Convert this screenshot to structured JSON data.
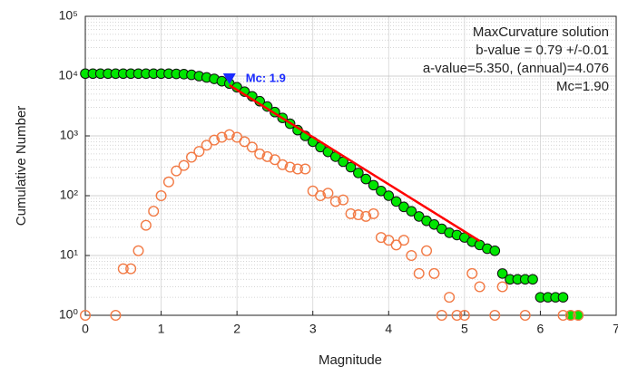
{
  "chart_data": {
    "type": "scatter",
    "x_label": "Magnitude",
    "y_label": "Cumulative Number",
    "xlim": [
      0,
      7
    ],
    "ylim": [
      1,
      100000
    ],
    "xticks": [
      0,
      1,
      2,
      3,
      4,
      5,
      6,
      7
    ],
    "yticks": [
      {
        "value": 1,
        "label": "10⁰"
      },
      {
        "value": 10,
        "label": "10¹"
      },
      {
        "value": 100,
        "label": "10²"
      },
      {
        "value": 1000,
        "label": "10³"
      },
      {
        "value": 10000,
        "label": "10⁴"
      },
      {
        "value": 100000,
        "label": "10⁵"
      }
    ],
    "log_y": true,
    "grid": true,
    "minor_grid": true,
    "series": [
      {
        "mode": "markers",
        "color": "#00e600",
        "filled": true,
        "x": [
          0,
          0.1,
          0.2,
          0.3,
          0.4,
          0.5,
          0.6,
          0.7,
          0.8,
          0.9,
          1.0,
          1.1,
          1.2,
          1.3,
          1.4,
          1.5,
          1.6,
          1.7,
          1.8,
          1.9,
          2.0,
          2.1,
          2.2,
          2.3,
          2.4,
          2.5,
          2.6,
          2.7,
          2.8,
          2.9,
          3.0,
          3.1,
          3.2,
          3.3,
          3.4,
          3.5,
          3.6,
          3.7,
          3.8,
          3.9,
          4.0,
          4.1,
          4.2,
          4.3,
          4.4,
          4.5,
          4.6,
          4.7,
          4.8,
          4.9,
          5.0,
          5.1,
          5.2,
          5.3,
          5.4,
          5.5,
          5.6,
          5.7,
          5.8,
          5.9,
          6.0,
          6.1,
          6.2,
          6.3,
          6.4,
          6.5
        ],
        "values": [
          11000,
          11000,
          11000,
          11000,
          11000,
          11000,
          11000,
          11000,
          11000,
          11000,
          11000,
          11000,
          10900,
          10800,
          10500,
          10000,
          9500,
          9000,
          8200,
          7500,
          6500,
          5500,
          4600,
          3800,
          3100,
          2500,
          2000,
          1600,
          1250,
          1000,
          800,
          650,
          540,
          450,
          370,
          300,
          240,
          190,
          150,
          120,
          100,
          80,
          65,
          55,
          45,
          38,
          33,
          28,
          24,
          22,
          20,
          17,
          15,
          13,
          12,
          5,
          4,
          4,
          4,
          4,
          2,
          2,
          2,
          2,
          1,
          1
        ]
      },
      {
        "mode": "markers",
        "color": "#f27a45",
        "filled": false,
        "x": [
          0,
          0.4,
          0.5,
          0.6,
          0.7,
          0.8,
          0.9,
          1.0,
          1.1,
          1.2,
          1.3,
          1.4,
          1.5,
          1.6,
          1.7,
          1.8,
          1.9,
          2.0,
          2.1,
          2.2,
          2.3,
          2.4,
          2.5,
          2.6,
          2.7,
          2.8,
          2.9,
          3.0,
          3.1,
          3.2,
          3.3,
          3.4,
          3.5,
          3.6,
          3.7,
          3.8,
          3.9,
          4.0,
          4.1,
          4.2,
          4.3,
          4.4,
          4.5,
          4.6,
          4.7,
          4.8,
          4.9,
          5.0,
          5.1,
          5.2,
          5.4,
          5.5,
          5.8,
          6.3,
          6.4,
          6.5
        ],
        "values": [
          1,
          1,
          6,
          6,
          12,
          32,
          55,
          100,
          170,
          260,
          320,
          440,
          550,
          700,
          850,
          950,
          1050,
          950,
          800,
          650,
          500,
          450,
          400,
          330,
          300,
          280,
          280,
          120,
          100,
          110,
          80,
          85,
          50,
          48,
          45,
          50,
          20,
          18,
          15,
          18,
          10,
          5,
          12,
          5,
          1,
          2,
          1,
          1,
          5,
          3,
          1,
          3,
          1,
          1,
          1,
          1
        ]
      },
      {
        "mode": "line",
        "color": "#ff0000",
        "x": [
          1.9,
          5.2
        ],
        "values": [
          7063,
          17.5
        ]
      }
    ],
    "mc_marker": {
      "x": 1.9,
      "y": 9000,
      "label": "Mc: 1.9",
      "color": "#1a2bff"
    },
    "annotation": [
      "MaxCurvature solution",
      "b-value = 0.79 +/-0.01",
      "a-value=5.350, (annual)=4.076",
      "Mc=1.90"
    ]
  }
}
